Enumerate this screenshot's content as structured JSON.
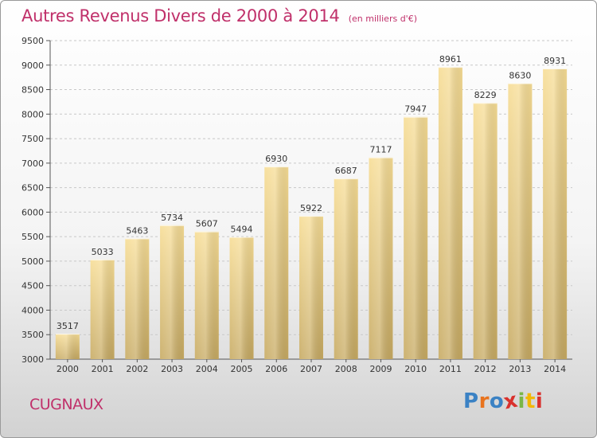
{
  "header": {
    "title": "Autres Revenus Divers de 2000 à 2014",
    "unit": "(en milliers d'€)"
  },
  "footer": {
    "commune": "CUGNAUX",
    "logo_text": "Proxiti"
  },
  "colors": {
    "title": "#c0306a",
    "bar_top": "#f7dd95",
    "bar_bottom": "#c7aa62",
    "grid": "#c8c8c8",
    "logo": [
      "#3b82c4",
      "#e8731e",
      "#3b82c4",
      "#d9312d",
      "#7ab648",
      "#f2b705",
      "#d9312d"
    ]
  },
  "chart_data": {
    "type": "bar",
    "title": "Autres Revenus Divers de 2000 à 2014",
    "subtitle": "(en milliers d'€)",
    "xlabel": "",
    "ylabel": "",
    "categories": [
      "2000",
      "2001",
      "2002",
      "2003",
      "2004",
      "2005",
      "2006",
      "2007",
      "2008",
      "2009",
      "2010",
      "2011",
      "2012",
      "2013",
      "2014"
    ],
    "values": [
      3517,
      5033,
      5463,
      5734,
      5607,
      5494,
      6930,
      5922,
      6687,
      7117,
      7947,
      8961,
      8229,
      8630,
      8931
    ],
    "data_labels": [
      "3517",
      "5033",
      "5463",
      "5734",
      "5607",
      "5494",
      "6930",
      "5922",
      "6687",
      "7117",
      "7947",
      "8961",
      "8229",
      "8630",
      "8931"
    ],
    "ylim": [
      3000,
      9500
    ],
    "yticks": [
      "3000",
      "3500",
      "4000",
      "4500",
      "5000",
      "5500",
      "6000",
      "6500",
      "7000",
      "7500",
      "8000",
      "8500",
      "9000",
      "9500"
    ],
    "ytick_values": [
      3000,
      3500,
      4000,
      4500,
      5000,
      5500,
      6000,
      6500,
      7000,
      7500,
      8000,
      8500,
      9000,
      9500
    ],
    "grid": "horizontal dashed"
  }
}
